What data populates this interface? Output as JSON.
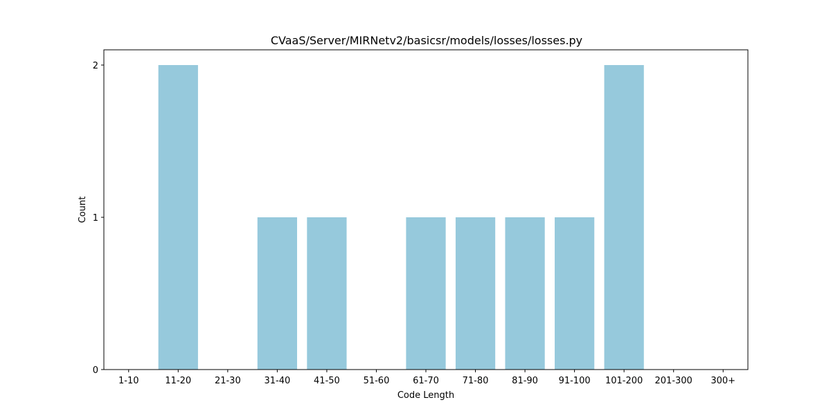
{
  "chart_data": {
    "type": "bar",
    "title": "CVaaS/Server/MIRNetv2/basicsr/models/losses/losses.py",
    "xlabel": "Code Length",
    "ylabel": "Count",
    "categories": [
      "1-10",
      "11-20",
      "21-30",
      "31-40",
      "41-50",
      "51-60",
      "61-70",
      "71-80",
      "81-90",
      "91-100",
      "101-200",
      "201-300",
      "300+"
    ],
    "values": [
      0,
      2,
      0,
      1,
      1,
      0,
      1,
      1,
      1,
      1,
      2,
      0,
      0
    ],
    "yticks": [
      0,
      1,
      2
    ],
    "ylim": [
      0,
      2.1
    ],
    "grid": false,
    "bar_color": "#96c9dc",
    "axis_color": "#000000"
  }
}
